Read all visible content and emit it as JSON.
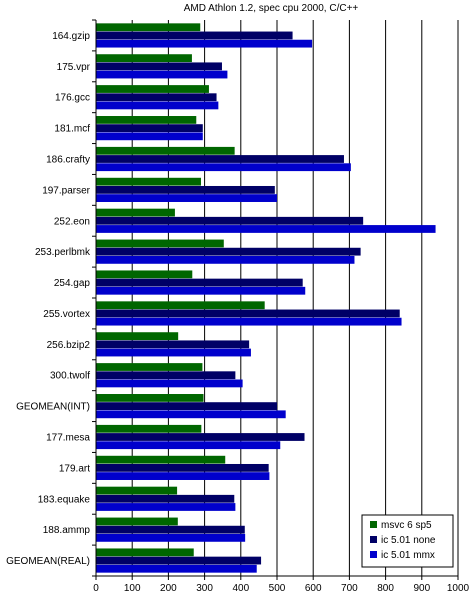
{
  "chart_data": {
    "type": "bar",
    "orientation": "horizontal",
    "title": "AMD Athlon 1.2, spec cpu 2000, C/C++",
    "xlabel": "",
    "ylabel": "",
    "xlim": [
      0,
      1000
    ],
    "xticks": [
      "0",
      "100",
      "200",
      "300",
      "400",
      "500",
      "600",
      "700",
      "800",
      "900",
      "1000"
    ],
    "grid": "vertical",
    "legend_position": "bottom-right",
    "categories": [
      "164.gzip",
      "175.vpr",
      "176.gcc",
      "181.mcf",
      "186.crafty",
      "197.parser",
      "252.eon",
      "253.perlbmk",
      "254.gap",
      "255.vortex",
      "256.bzip2",
      "300.twolf",
      "GEOMEAN(INT)",
      "177.mesa",
      "179.art",
      "183.equake",
      "188.ammp",
      "GEOMEAN(REAL)"
    ],
    "series": [
      {
        "name": "msvc 6 sp5",
        "color": "#006600",
        "values": [
          288,
          265,
          312,
          277,
          383,
          290,
          218,
          353,
          266,
          466,
          227,
          294,
          297,
          291,
          357,
          224,
          226,
          270
        ]
      },
      {
        "name": "ic 5.01 none",
        "color": "#000066",
        "values": [
          543,
          348,
          333,
          295,
          685,
          494,
          738,
          731,
          571,
          839,
          423,
          385,
          500,
          576,
          477,
          382,
          411,
          456
        ]
      },
      {
        "name": "ic 5.01 mmx",
        "color": "#0000cc",
        "values": [
          597,
          363,
          338,
          295,
          704,
          500,
          938,
          714,
          578,
          844,
          428,
          405,
          524,
          509,
          479,
          385,
          412,
          444
        ]
      }
    ]
  }
}
